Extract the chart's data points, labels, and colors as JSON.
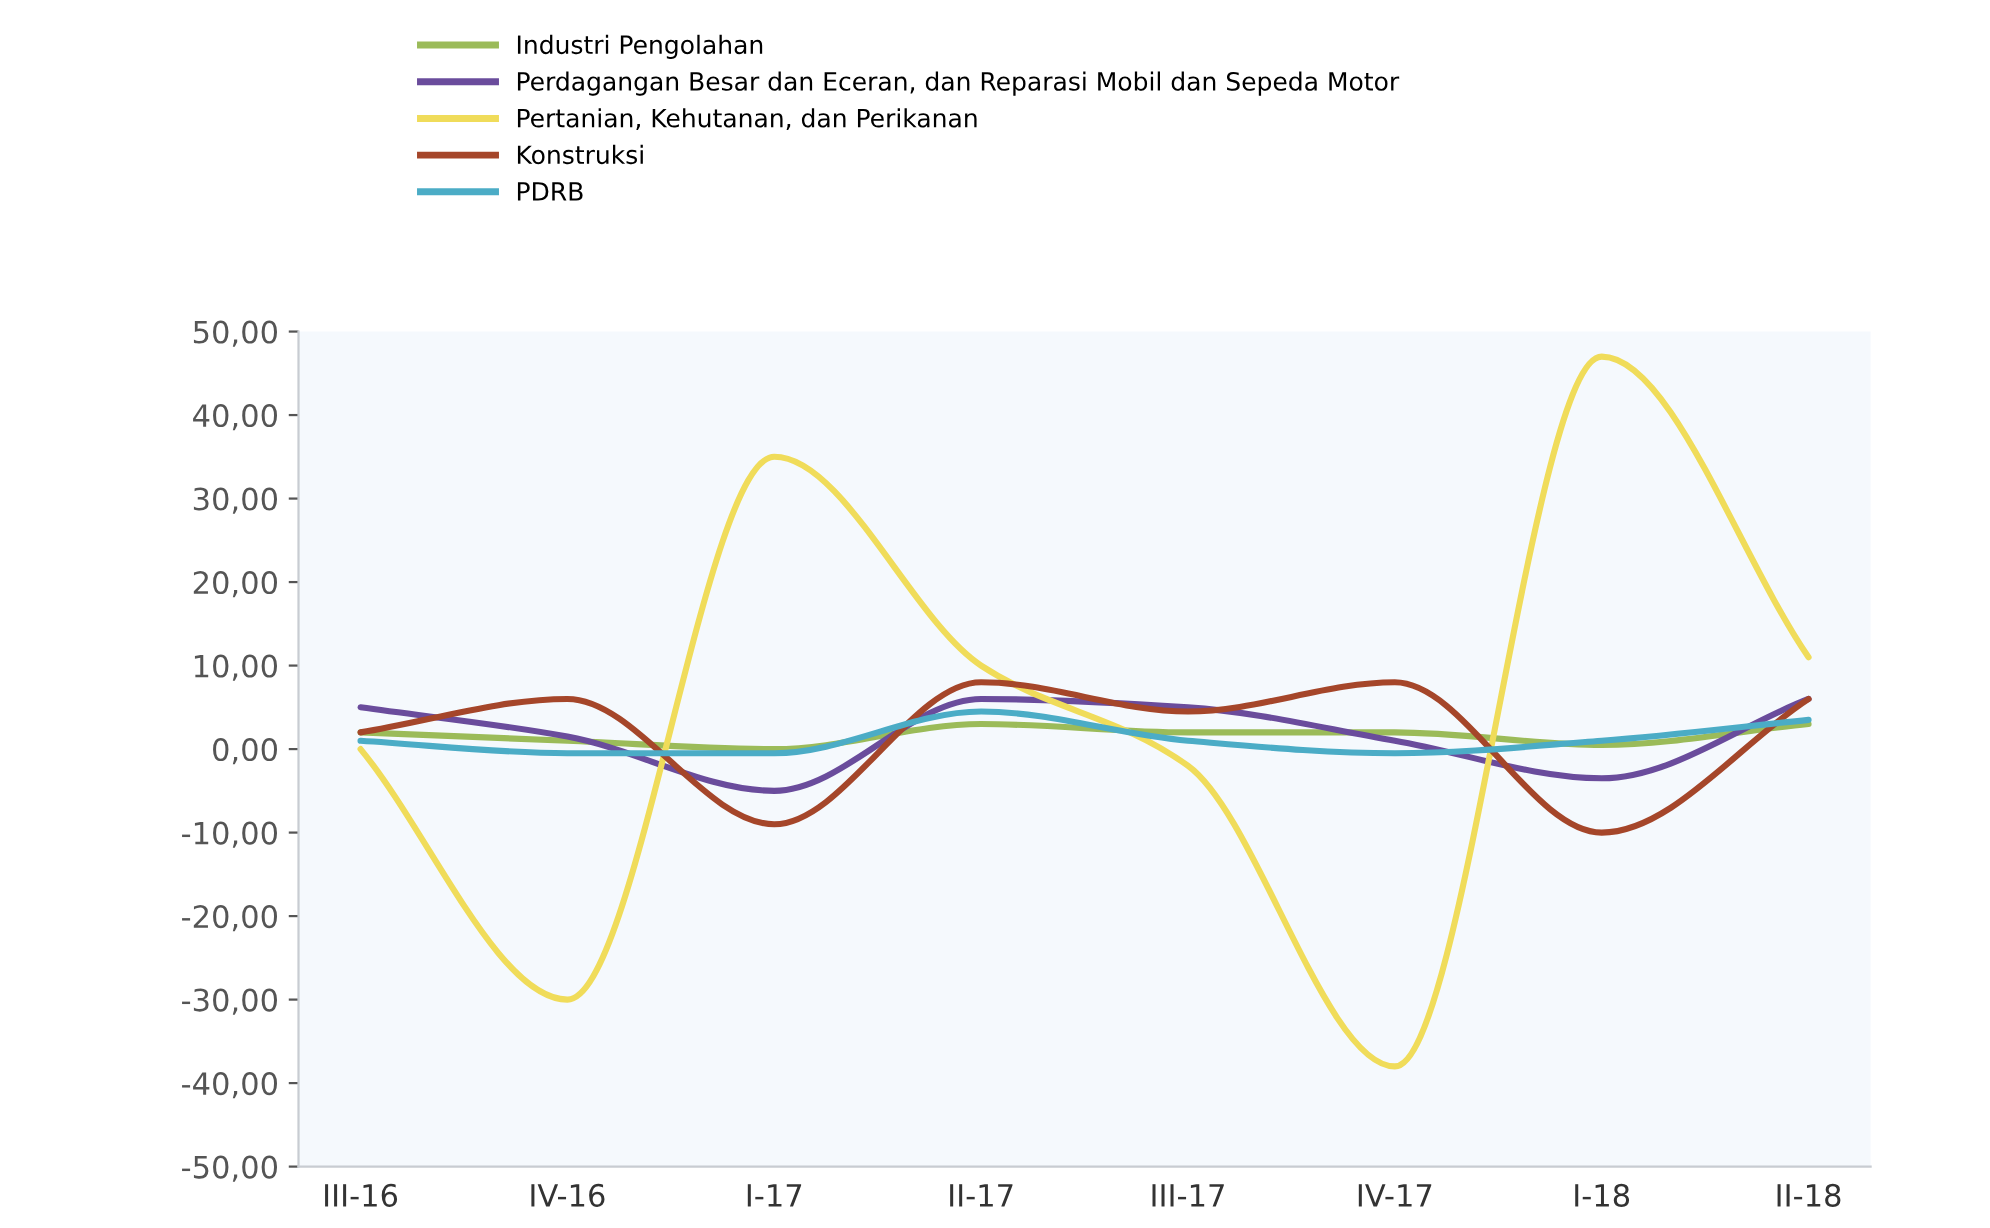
{
  "chart_data": {
    "type": "line",
    "categories": [
      "III-16",
      "IV-16",
      "I-17",
      "II-17",
      "III-17",
      "IV-17",
      "I-18",
      "II-18"
    ],
    "series": [
      {
        "name": "Industri Pengolahan",
        "color": "#9bbb59",
        "values": [
          2,
          1,
          0,
          3,
          2,
          2,
          0.5,
          3
        ]
      },
      {
        "name": "Perdagangan Besar dan Eceran, dan Reparasi Mobil dan Sepeda Motor",
        "color": "#6a4c9c",
        "values": [
          5,
          1.5,
          -5,
          6,
          5,
          1,
          -3.5,
          6
        ]
      },
      {
        "name": "Pertanian, Kehutanan, dan Perikanan",
        "color": "#f0dc5a",
        "values": [
          0,
          -30,
          35,
          10,
          -2,
          -38,
          47,
          11
        ]
      },
      {
        "name": "Konstruksi",
        "color": "#a5462a",
        "values": [
          2,
          6,
          -9,
          8,
          4.5,
          8,
          -10,
          6
        ]
      },
      {
        "name": "PDRB",
        "color": "#4bacc6",
        "values": [
          1,
          -0.5,
          -0.5,
          4.5,
          1,
          -0.5,
          1,
          3.5
        ]
      }
    ],
    "ylim": [
      -50,
      50
    ],
    "yticks": [
      {
        "value": -50,
        "label": "-50,00"
      },
      {
        "value": -40,
        "label": "-40,00"
      },
      {
        "value": -30,
        "label": "-30,00"
      },
      {
        "value": -20,
        "label": "-20,00"
      },
      {
        "value": -10,
        "label": "-10,00"
      },
      {
        "value": 0,
        "label": "0,00"
      },
      {
        "value": 10,
        "label": "10,00"
      },
      {
        "value": 20,
        "label": "20,00"
      },
      {
        "value": 30,
        "label": "30,00"
      },
      {
        "value": 40,
        "label": "40,00"
      },
      {
        "value": 50,
        "label": "50,00"
      }
    ],
    "legend": "top",
    "grid": false,
    "marker": "none",
    "line_style": "solid"
  }
}
